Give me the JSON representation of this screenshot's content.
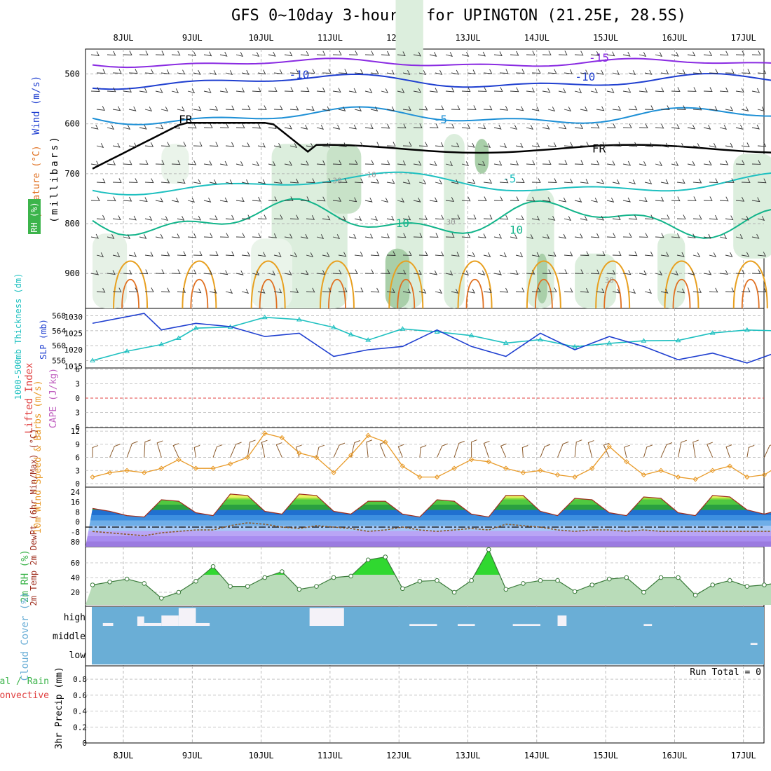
{
  "title": "GFS 0~10day 3-hourly for UPINGTON (21.25E, 28.5S)",
  "dates": [
    "8JUL",
    "9JUL",
    "10JUL",
    "11JUL",
    "12JUL",
    "13JUL",
    "14JUL",
    "15JUL",
    "16JUL",
    "17JUL"
  ],
  "colors": {
    "purple": "#8a2be2",
    "blue": "#1f3fd0",
    "lightblue": "#1e90d6",
    "teal": "#1ec0c0",
    "green_teal": "#12b48a",
    "orange": "#e8a020",
    "magenta": "#e0208a",
    "rh_green": "#3cb44b",
    "cloud_blue": "#6aaed6",
    "wind_orange": "#e89a28",
    "barb_brown": "#8b5a2b"
  },
  "chart_data": [
    {
      "panel": "upper_air",
      "type": "contour",
      "ylabel_wind": "Wind (m/s)",
      "ylabel_temp": "Temperature (°C)",
      "ylabel_rh": "RH (%)",
      "ylabel_pressure": "(millibars)",
      "yticks": [
        500,
        600,
        700,
        800,
        900
      ],
      "ylim": [
        450,
        970
      ],
      "contour_labels": [
        {
          "text": "-15",
          "day": 7.35,
          "p": 468,
          "color": "purple"
        },
        {
          "text": "-10",
          "day": 3.0,
          "p": 502,
          "color": "blue"
        },
        {
          "text": "-10",
          "day": 7.15,
          "p": 506,
          "color": "blue"
        },
        {
          "text": "-5",
          "day": 5.05,
          "p": 592,
          "color": "lightblue"
        },
        {
          "text": "FR",
          "day": 1.35,
          "p": 592,
          "color": "black"
        },
        {
          "text": "FR",
          "day": 7.35,
          "p": 650,
          "color": "black"
        },
        {
          "text": "-5",
          "day": 6.05,
          "p": 711,
          "color": "teal"
        },
        {
          "text": "10",
          "day": 4.5,
          "p": 800,
          "color": "green_teal"
        },
        {
          "text": "10",
          "day": 6.15,
          "p": 813,
          "color": "green_teal"
        },
        {
          "text": "30",
          "day": 3.55,
          "p": 712,
          "color": "grey"
        },
        {
          "text": "10",
          "day": 4.05,
          "p": 700,
          "color": "grey"
        },
        {
          "text": "30",
          "day": 5.2,
          "p": 795,
          "color": "grey"
        },
        {
          "text": "30",
          "day": 7.5,
          "p": 912,
          "color": "grey"
        }
      ]
    },
    {
      "panel": "slp_thickness",
      "type": "line",
      "ylabel_thickness": "1000-500mb Thickness (dm)",
      "ylabel_slp": "SLP (mb)",
      "thickness_ticks": [
        556,
        560,
        564,
        568
      ],
      "slp_ticks": [
        1015,
        1020,
        1025,
        1030
      ],
      "series": [
        {
          "name": "thickness",
          "color": "teal",
          "x": [
            0,
            0.5,
            1,
            1.25,
            1.5,
            2,
            2.5,
            3,
            3.5,
            3.75,
            4,
            4.5,
            5,
            5.5,
            6,
            6.5,
            7,
            7.5,
            8,
            8.5,
            9,
            9.5,
            9.9
          ],
          "values": [
            556.0,
            558.5,
            560.3,
            562.0,
            564.7,
            565.0,
            567.6,
            567.0,
            564.9,
            563.0,
            561.5,
            564.5,
            563.7,
            562.7,
            560.7,
            561.6,
            559.7,
            560.6,
            561.3,
            561.4,
            563.4,
            564.2,
            564.0
          ]
        },
        {
          "name": "SLP",
          "color": "blue",
          "x": [
            0,
            0.5,
            0.75,
            1,
            1.5,
            2,
            2.5,
            3,
            3.5,
            4,
            4.5,
            5,
            5.5,
            6,
            6.5,
            7,
            7.5,
            8,
            8.5,
            9,
            9.5,
            9.9
          ],
          "values": [
            1028,
            1030,
            1031,
            1026,
            1028,
            1027,
            1024,
            1025,
            1018,
            1020,
            1021,
            1026,
            1021,
            1018,
            1025,
            1020,
            1024,
            1021,
            1017,
            1019,
            1016,
            1019
          ]
        }
      ]
    },
    {
      "panel": "stability",
      "type": "line",
      "ylabel_li": "Lifted Index",
      "ylabel_cape": "CAPE (J/kg)",
      "yticks": [
        "6",
        "3",
        "0",
        "3",
        "6"
      ],
      "series": [
        {
          "name": "Lifted Index",
          "color": "red",
          "values": []
        }
      ]
    },
    {
      "panel": "wind_10m",
      "type": "line",
      "ylabel": "10m Wind Speed & Barbs (m/s)",
      "yticks": [
        0,
        3,
        6,
        9,
        12
      ],
      "x": [
        0,
        0.25,
        0.5,
        0.75,
        1,
        1.25,
        1.5,
        1.75,
        2,
        2.25,
        2.5,
        2.75,
        3,
        3.25,
        3.5,
        3.75,
        4,
        4.25,
        4.5,
        4.75,
        5,
        5.25,
        5.5,
        5.75,
        6,
        6.25,
        6.5,
        6.75,
        7,
        7.25,
        7.5,
        7.75,
        8,
        8.25,
        8.5,
        8.75,
        9,
        9.25,
        9.5,
        9.75,
        9.9
      ],
      "series": [
        {
          "name": "speed",
          "values": [
            1.5,
            2.5,
            3.0,
            2.5,
            3.5,
            5.5,
            3.5,
            3.5,
            4.5,
            6.0,
            11.5,
            10.5,
            7.0,
            6.0,
            2.5,
            6.5,
            11.0,
            9.5,
            4.0,
            1.5,
            1.5,
            3.5,
            5.5,
            5.0,
            3.5,
            2.5,
            3.0,
            2.0,
            1.5,
            3.5,
            8.5,
            5.0,
            2.0,
            3.0,
            1.5,
            1.0,
            3.0,
            4.0,
            1.5,
            2.0,
            3.5
          ]
        }
      ]
    },
    {
      "panel": "temp_2m",
      "type": "area",
      "ylabel": "2m Temp 2m DewPt (6hr Min/Max) (°C)",
      "yticks": [
        "24",
        "16",
        "8",
        "0",
        "-8",
        "80"
      ],
      "x": [
        0,
        0.25,
        0.5,
        0.75,
        1,
        1.25,
        1.5,
        1.75,
        2,
        2.25,
        2.5,
        2.75,
        3,
        3.25,
        3.5,
        3.75,
        4,
        4.25,
        4.5,
        4.75,
        5,
        5.25,
        5.5,
        5.75,
        6,
        6.25,
        6.5,
        6.75,
        7,
        7.25,
        7.5,
        7.75,
        8,
        8.25,
        8.5,
        8.75,
        9,
        9.25,
        9.5,
        9.75,
        9.9
      ],
      "series": [
        {
          "name": "temp",
          "values": [
            13,
            11,
            8,
            7,
            19,
            18,
            10,
            8,
            23,
            22,
            11,
            9,
            23,
            22,
            11,
            9,
            18,
            18,
            9,
            7,
            19,
            18,
            9,
            7,
            22,
            22,
            11,
            8,
            20,
            19,
            10,
            8,
            21,
            20,
            10,
            8,
            22,
            21,
            12,
            9,
            11
          ]
        },
        {
          "name": "dewpoint",
          "values": [
            -3,
            -4,
            -5,
            -6,
            -4,
            -3,
            -2,
            -2,
            1,
            3,
            2,
            0,
            -1,
            1,
            0,
            -1,
            -3,
            -2,
            0,
            -2,
            -3,
            -2,
            -1,
            -2,
            2,
            1,
            0,
            -2,
            -3,
            -2,
            -2,
            -3,
            -2,
            -3,
            -3,
            -3,
            -3,
            -3,
            -3,
            -3,
            -3
          ]
        }
      ]
    },
    {
      "panel": "rh_2m",
      "type": "area",
      "ylabel": "2m RH (%)",
      "yticks": [
        20,
        40,
        60
      ],
      "x": [
        0,
        0.25,
        0.5,
        0.75,
        1,
        1.25,
        1.5,
        1.75,
        2,
        2.25,
        2.5,
        2.75,
        3,
        3.25,
        3.5,
        3.75,
        4,
        4.25,
        4.5,
        4.75,
        5,
        5.25,
        5.5,
        5.75,
        6,
        6.25,
        6.5,
        6.75,
        7,
        7.25,
        7.5,
        7.75,
        8,
        8.25,
        8.5,
        8.75,
        9,
        9.25,
        9.5,
        9.75,
        9.9
      ],
      "series": [
        {
          "name": "RH",
          "values": [
            30,
            34,
            38,
            32,
            12,
            20,
            35,
            55,
            28,
            28,
            40,
            48,
            24,
            28,
            40,
            42,
            64,
            68,
            25,
            35,
            36,
            20,
            36,
            78,
            24,
            32,
            36,
            36,
            21,
            30,
            38,
            40,
            20,
            40,
            40,
            16,
            30,
            36,
            28,
            30,
            32
          ]
        }
      ]
    },
    {
      "panel": "cloud_cover",
      "type": "heatmap",
      "ylabel": "Cloud Cover (%)",
      "levels": [
        "high",
        "middle",
        "low"
      ],
      "cells": [
        {
          "day0": 0.15,
          "day1": 0.3,
          "level": "high",
          "amount": 0.15
        },
        {
          "day0": 0.65,
          "day1": 0.75,
          "level": "high",
          "amount": 0.5
        },
        {
          "day0": 0.75,
          "day1": 1.0,
          "level": "high",
          "amount": 0.15
        },
        {
          "day0": 1.0,
          "day1": 1.25,
          "level": "high",
          "amount": 0.55
        },
        {
          "day0": 1.25,
          "day1": 1.5,
          "level": "high",
          "amount": 0.95
        },
        {
          "day0": 1.5,
          "day1": 1.7,
          "level": "high",
          "amount": 0.15
        },
        {
          "day0": 3.15,
          "day1": 3.65,
          "level": "high",
          "amount": 0.95
        },
        {
          "day0": 4.6,
          "day1": 5.0,
          "level": "high",
          "amount": 0.1
        },
        {
          "day0": 5.3,
          "day1": 5.55,
          "level": "high",
          "amount": 0.1
        },
        {
          "day0": 6.1,
          "day1": 6.5,
          "level": "high",
          "amount": 0.1
        },
        {
          "day0": 6.75,
          "day1": 6.88,
          "level": "high",
          "amount": 0.55
        },
        {
          "day0": 8.0,
          "day1": 8.12,
          "level": "high",
          "amount": 0.1
        },
        {
          "day0": 9.55,
          "day1": 9.65,
          "level": "middle",
          "amount": 0.1
        }
      ]
    },
    {
      "panel": "precip_3hr",
      "type": "bar",
      "ylabel": "3hr Precip (mm)",
      "legend_total": "Total / Rain",
      "legend_convective": "Convective",
      "run_total": "Run Total = 0",
      "yticks": [
        "0",
        "0.2",
        "0.4",
        "0.6",
        "0.8"
      ],
      "ylim": [
        0,
        0.95
      ],
      "values": []
    }
  ]
}
